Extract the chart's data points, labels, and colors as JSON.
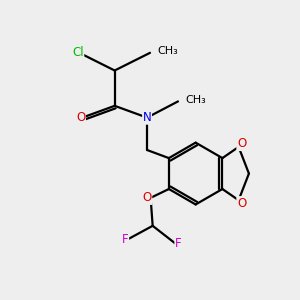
{
  "background_color": "#eeeeee",
  "bond_color": "#000000",
  "atom_colors": {
    "Cl": "#00bb00",
    "O": "#dd0000",
    "N": "#0000ee",
    "F": "#cc00cc",
    "C": "#000000"
  },
  "figsize": [
    3.0,
    3.0
  ],
  "dpi": 100,
  "bond_lw": 1.6,
  "fontsize": 8.5
}
